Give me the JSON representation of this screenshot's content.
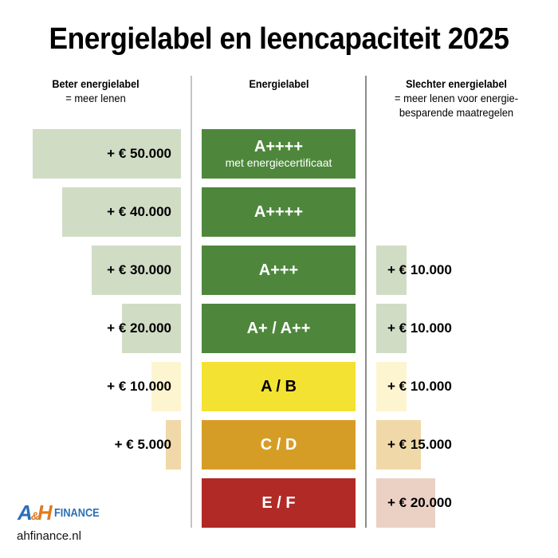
{
  "title": "Energielabel en leencapaciteit 2025",
  "columns": {
    "left": {
      "heading": "Beter energielabel",
      "subheading": "= meer lenen"
    },
    "middle": {
      "heading": "Energielabel"
    },
    "right": {
      "heading": "Slechter energielabel",
      "subheading_line1": "= meer lenen voor energie-",
      "subheading_line2": "besparende maatregelen"
    }
  },
  "rows": [
    {
      "label": "A++++",
      "sublabel": "met energiecertificaat",
      "label_color": "#4e873c",
      "label_text_color": "#ffffff",
      "left_value": "+ € 50.000",
      "left_amount": 50000,
      "left_bar_color": "#d1dcc5",
      "right_value": "",
      "right_amount": 0,
      "right_bar_color": ""
    },
    {
      "label": "A++++",
      "sublabel": "",
      "label_color": "#4e873c",
      "label_text_color": "#ffffff",
      "left_value": "+ € 40.000",
      "left_amount": 40000,
      "left_bar_color": "#d1dcc5",
      "right_value": "",
      "right_amount": 0,
      "right_bar_color": ""
    },
    {
      "label": "A+++",
      "sublabel": "",
      "label_color": "#4e873c",
      "label_text_color": "#ffffff",
      "left_value": "+ € 30.000",
      "left_amount": 30000,
      "left_bar_color": "#d1dcc5",
      "right_value": "+ € 10.000",
      "right_amount": 10000,
      "right_bar_color": "#d1dcc5"
    },
    {
      "label": "A+ / A++",
      "sublabel": "",
      "label_color": "#4e873c",
      "label_text_color": "#ffffff",
      "left_value": "+ € 20.000",
      "left_amount": 20000,
      "left_bar_color": "#d1dcc5",
      "right_value": "+ € 10.000",
      "right_amount": 10000,
      "right_bar_color": "#d1dcc5"
    },
    {
      "label": "A / B",
      "sublabel": "",
      "label_color": "#f4e232",
      "label_text_color": "#000000",
      "left_value": "+ € 10.000",
      "left_amount": 10000,
      "left_bar_color": "#fdf5d0",
      "right_value": "+ € 10.000",
      "right_amount": 10000,
      "right_bar_color": "#fdf5d0"
    },
    {
      "label": "C / D",
      "sublabel": "",
      "label_color": "#d69d26",
      "label_text_color": "#ffffff",
      "left_value": "+ € 5.000",
      "left_amount": 5000,
      "left_bar_color": "#f0d8a8",
      "right_value": "+ € 15.000",
      "right_amount": 15000,
      "right_bar_color": "#f0d8a8"
    },
    {
      "label": "E / F",
      "sublabel": "",
      "label_color": "#b12a26",
      "label_text_color": "#ffffff",
      "left_value": "",
      "left_amount": 0,
      "left_bar_color": "",
      "right_value": "+ € 20.000",
      "right_amount": 20000,
      "right_bar_color": "#ebd0c4"
    }
  ],
  "logo": {
    "mark_a": "A",
    "mark_amp": "&",
    "mark_h": "H",
    "text": "FINANCE"
  },
  "website": "ahfinance.nl",
  "chart_data": {
    "type": "bar",
    "title": "Energielabel en leencapaciteit 2025",
    "categories": [
      "A++++ met energiecertificaat",
      "A++++",
      "A+++",
      "A+ / A++",
      "A / B",
      "C / D",
      "E / F"
    ],
    "series": [
      {
        "name": "Beter energielabel = meer lenen",
        "values": [
          50000,
          40000,
          30000,
          20000,
          10000,
          5000,
          0
        ]
      },
      {
        "name": "Slechter energielabel = meer lenen voor energiebesparende maatregelen",
        "values": [
          0,
          0,
          10000,
          10000,
          10000,
          15000,
          20000
        ]
      }
    ],
    "orientation": "horizontal",
    "unit": "€",
    "xlabel": "",
    "ylabel": "Energielabel",
    "grid": false,
    "legend": "column headings"
  }
}
